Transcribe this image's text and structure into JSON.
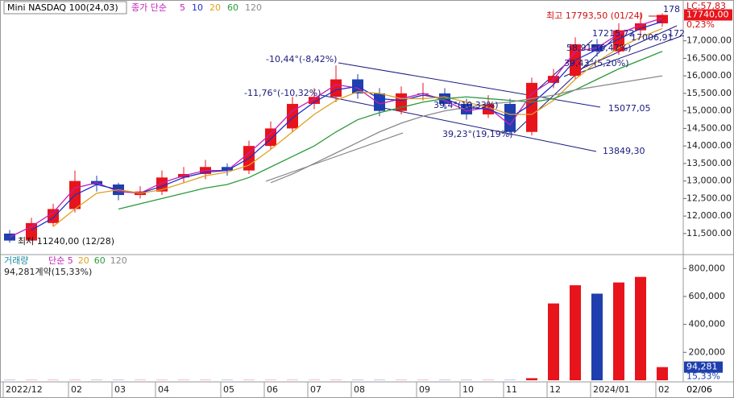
{
  "chart_data": [
    {
      "type": "candlestick",
      "title": "Mini NASDAQ 100(24,03)",
      "ma_label": "종가 단순",
      "categories": [
        "2022/12",
        null,
        null,
        "02",
        null,
        "03",
        null,
        "04",
        null,
        null,
        "05",
        null,
        "06",
        null,
        "07",
        null,
        "08",
        null,
        null,
        "09",
        null,
        "10",
        null,
        "11",
        null,
        "12",
        null,
        "2024/01",
        null,
        null,
        "02"
      ],
      "end_date_label": "02/06",
      "candles": {
        "open": [
          11500,
          11300,
          11800,
          12200,
          13000,
          12900,
          12600,
          12700,
          13100,
          13200,
          13400,
          13300,
          14000,
          14500,
          15200,
          15400,
          15900,
          15500,
          15000,
          15500,
          15500,
          15200,
          14900,
          15200,
          14400,
          15800,
          16000,
          16900,
          16700,
          17300,
          17500
        ],
        "high": [
          11600,
          11950,
          12350,
          13300,
          13150,
          12950,
          12850,
          13300,
          13400,
          13600,
          13500,
          14150,
          14700,
          15400,
          15650,
          16300,
          16050,
          15650,
          15700,
          15800,
          15650,
          15350,
          15450,
          15350,
          15950,
          16200,
          17100,
          17050,
          17500,
          17793.5,
          17780
        ],
        "low": [
          11240,
          11300,
          11700,
          12100,
          12700,
          12450,
          12500,
          12600,
          12950,
          13050,
          13150,
          13200,
          13900,
          14400,
          15050,
          15250,
          15350,
          14850,
          14900,
          15300,
          15050,
          14750,
          14800,
          14300,
          14300,
          15650,
          15900,
          16550,
          16600,
          17150,
          17400
        ],
        "close": [
          11300,
          11800,
          12200,
          13000,
          12900,
          12600,
          12700,
          13100,
          13200,
          13400,
          13300,
          14000,
          14500,
          15200,
          15400,
          15900,
          15500,
          15000,
          15500,
          15500,
          15200,
          14900,
          15200,
          14400,
          15800,
          16000,
          16900,
          16700,
          17300,
          17500,
          17740
        ]
      },
      "up_color": "#e8141c",
      "down_color": "#1f3fae",
      "series": [
        {
          "name": "5",
          "color": "#c21fb8",
          "values": [
            11400,
            11700,
            12100,
            12800,
            12950,
            12700,
            12650,
            12950,
            13150,
            13300,
            13300,
            13800,
            14350,
            15000,
            15350,
            15750,
            15650,
            15200,
            15350,
            15500,
            15300,
            15000,
            15100,
            14600,
            15500,
            15900,
            16700,
            16800,
            17200,
            17450,
            17650
          ]
        },
        {
          "name": "10",
          "color": "#2030c8",
          "values": [
            null,
            11600,
            11950,
            12600,
            12900,
            12750,
            12650,
            12850,
            13100,
            13250,
            13300,
            13650,
            14200,
            14800,
            15250,
            15600,
            15700,
            15350,
            15300,
            15450,
            15350,
            15100,
            15050,
            14800,
            15200,
            15750,
            16450,
            16750,
            17050,
            17350,
            17550
          ]
        },
        {
          "name": "20",
          "color": "#e0a020",
          "values": [
            null,
            null,
            11700,
            12200,
            12650,
            12750,
            12650,
            12750,
            12950,
            13150,
            13250,
            13450,
            13900,
            14400,
            14900,
            15300,
            15550,
            15500,
            15350,
            15350,
            15400,
            15250,
            15100,
            14900,
            14900,
            15300,
            15900,
            16400,
            16800,
            17100,
            17350
          ]
        },
        {
          "name": "60",
          "color": "#2a9a3a",
          "values": [
            null,
            null,
            null,
            null,
            null,
            12200,
            12350,
            12500,
            12650,
            12800,
            12900,
            13100,
            13400,
            13700,
            14000,
            14400,
            14750,
            14950,
            15100,
            15250,
            15350,
            15400,
            15350,
            15300,
            15250,
            15350,
            15600,
            15900,
            16200,
            16450,
            16700
          ]
        },
        {
          "name": "120",
          "color": "#8a8a8a",
          "values": [
            null,
            null,
            null,
            null,
            null,
            null,
            null,
            null,
            null,
            null,
            null,
            null,
            12950,
            13200,
            13500,
            13800,
            14100,
            14400,
            14650,
            14850,
            15000,
            15100,
            15200,
            15250,
            15350,
            15450,
            15600,
            15700,
            15800,
            15900,
            16000
          ]
        }
      ],
      "ylim": [
        10900,
        18050
      ],
      "yticks": [
        {
          "value": 11500,
          "label": "11,500.00"
        },
        {
          "value": 12000,
          "label": "12,000.00"
        },
        {
          "value": 12500,
          "label": "12,500.00"
        },
        {
          "value": 13000,
          "label": "13,000.00"
        },
        {
          "value": 13500,
          "label": "13,500.00"
        },
        {
          "value": 14000,
          "label": "14,000.00"
        },
        {
          "value": 14500,
          "label": "14,500.00"
        },
        {
          "value": 15000,
          "label": "15,000.00"
        },
        {
          "value": 15500,
          "label": "15,500.00"
        },
        {
          "value": 16000,
          "label": "16,000.00"
        },
        {
          "value": 16500,
          "label": "16,500.00"
        },
        {
          "value": 17000,
          "label": "17,000.00"
        }
      ],
      "last_price_label": "17740,00",
      "change_label": "0,23%",
      "lc_label": "LC:57,83",
      "annotations": [
        {
          "text": "최고 17793,50 (01/24)",
          "color": "#d01010"
        },
        {
          "text": "최저 11240,00 (12/28)",
          "color": "#111111"
        },
        {
          "text": "-10,44°(-8,42%)",
          "color": "#1a1a80"
        },
        {
          "text": "-11,76°(-10,32%)",
          "color": "#1a1a80"
        },
        {
          "text": "17215,72",
          "color": "#1a1a80"
        },
        {
          "text": "58,91°(6,47%)",
          "color": "#1a1a80"
        },
        {
          "text": "17006,91",
          "color": "#1a1a80"
        },
        {
          "text": "39,43°(5,20%)",
          "color": "#1a1a80"
        },
        {
          "text": "39,4°(10,33%)",
          "color": "#1a1a80"
        },
        {
          "text": "15077,05",
          "color": "#1a1a80"
        },
        {
          "text": "39,23°(19,19%)",
          "color": "#1a1a80"
        },
        {
          "text": "13849,30",
          "color": "#1a1a80"
        },
        {
          "text": "178",
          "color": "#1a1a80"
        },
        {
          "text": "172",
          "color": "#1a1a80"
        }
      ]
    },
    {
      "type": "bar",
      "label": "거래량",
      "label_color": "#1a8aa0",
      "ma_legend": [
        {
          "name": "단순 5",
          "color": "#c21fb8"
        },
        {
          "name": "20",
          "color": "#e0a020"
        },
        {
          "name": "60",
          "color": "#2a9a3a"
        },
        {
          "name": "120",
          "color": "#8a8a8a"
        }
      ],
      "summary": "94,281계약(15,33%)",
      "values": [
        1500,
        1500,
        1500,
        1500,
        1500,
        1500,
        1500,
        1500,
        1500,
        1500,
        1500,
        1500,
        1500,
        1500,
        1500,
        1500,
        1500,
        1500,
        1500,
        1500,
        1500,
        1500,
        1500,
        1500,
        15000,
        550000,
        680000,
        620000,
        700000,
        740000,
        94281
      ],
      "last_value_label": "94,281",
      "last_change_label": "15,33%",
      "ylim": [
        0,
        888000
      ],
      "yticks": [
        {
          "value": 200000,
          "label": "200,000"
        },
        {
          "value": 400000,
          "label": "400,000"
        },
        {
          "value": 600000,
          "label": "600,000"
        },
        {
          "value": 800000,
          "label": "800,000"
        }
      ]
    }
  ]
}
